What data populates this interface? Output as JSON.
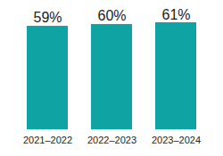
{
  "chart_data": {
    "type": "bar",
    "categories": [
      "2021–2022",
      "2022–2023",
      "2023–2024"
    ],
    "values": [
      59,
      60,
      61
    ],
    "value_labels": [
      "59%",
      "60%",
      "61%"
    ],
    "color": "#10a3a3",
    "ylim": [
      0,
      61
    ],
    "data_labels": true,
    "tick_labels": "x"
  }
}
